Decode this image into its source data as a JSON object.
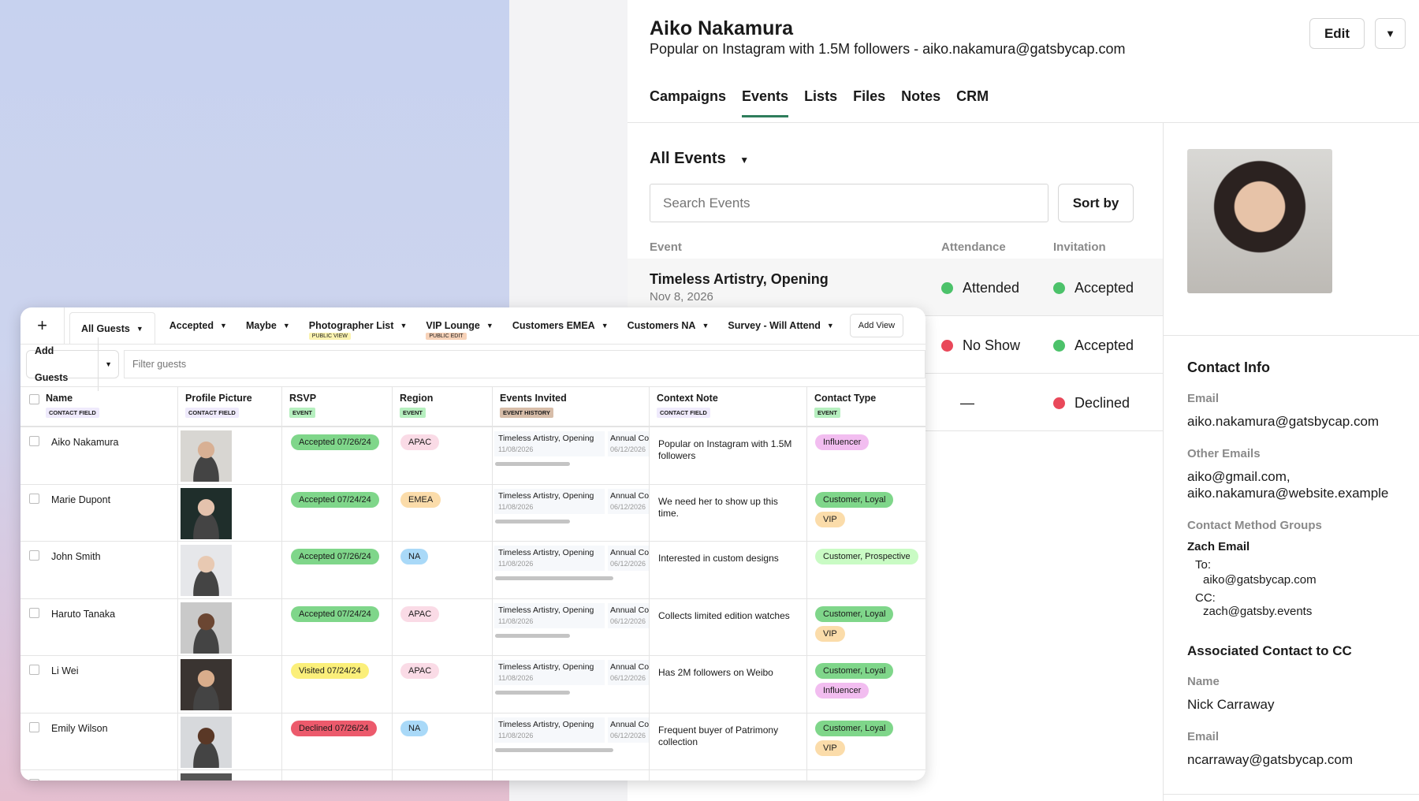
{
  "contact": {
    "name": "Aiko Nakamura",
    "subtitle": "Popular on Instagram with 1.5M followers - aiko.nakamura@gatsbycap.com",
    "edit_label": "Edit"
  },
  "tabs": [
    {
      "label": "Campaigns"
    },
    {
      "label": "Events",
      "active": true
    },
    {
      "label": "Lists"
    },
    {
      "label": "Files"
    },
    {
      "label": "Notes"
    },
    {
      "label": "CRM"
    }
  ],
  "events": {
    "filter_label": "All Events",
    "search_placeholder": "Search Events",
    "sort_label": "Sort by",
    "columns": [
      "Event",
      "Attendance",
      "Invitation"
    ],
    "rows": [
      {
        "name": "Timeless Artistry, Opening",
        "date": "Nov 8, 2026",
        "attendance": "Attended",
        "attendance_color": "#4cc26a",
        "invitation": "Accepted",
        "invitation_color": "#4cc26a"
      },
      {
        "name": "",
        "date": "",
        "attendance": "No Show",
        "attendance_color": "#e9485a",
        "invitation": "Accepted",
        "invitation_color": "#4cc26a"
      },
      {
        "name": "",
        "date": "",
        "attendance": "—",
        "attendance_color": "",
        "invitation": "Declined",
        "invitation_color": "#e9485a"
      }
    ]
  },
  "info": {
    "title": "Contact Info",
    "email_label": "Email",
    "email": "aiko.nakamura@gatsbycap.com",
    "other_label": "Other Emails",
    "other1": "aiko@gmail.com,",
    "other2": "aiko.nakamura@website.example",
    "cmg_label": "Contact Method Groups",
    "group_name": "Zach Email",
    "to_label": "To:",
    "to": "aiko@gatsbycap.com",
    "cc_label": "CC:",
    "cc": "zach@gatsby.events",
    "assoc_title": "Associated Contact to CC",
    "assoc_name_label": "Name",
    "assoc_name": "Nick Carraway",
    "assoc_email_label": "Email",
    "assoc_email": "ncarraway@gatsbycap.com"
  },
  "guests": {
    "views": [
      {
        "label": "All Guests",
        "active": true
      },
      {
        "label": "Accepted"
      },
      {
        "label": "Maybe"
      },
      {
        "label": "Photographer List",
        "badge": "PUBLIC VIEW",
        "badge_color": "#fbf3b0"
      },
      {
        "label": "VIP Lounge",
        "badge": "PUBLIC EDIT",
        "badge_color": "#f7d2b8"
      },
      {
        "label": "Customers EMEA"
      },
      {
        "label": "Customers NA"
      },
      {
        "label": "Survey - Will Attend"
      }
    ],
    "add_view_label": "Add View",
    "add_guests_label": "Add Guests",
    "filter_placeholder": "Filter guests",
    "columns": [
      {
        "label": "Name",
        "tag": "CONTACT FIELD",
        "tag_color": "#efeafc"
      },
      {
        "label": "Profile Picture",
        "tag": "CONTACT FIELD",
        "tag_color": "#efeafc"
      },
      {
        "label": "RSVP",
        "tag": "EVENT",
        "tag_color": "#b6efbf"
      },
      {
        "label": "Region",
        "tag": "EVENT",
        "tag_color": "#b6efbf"
      },
      {
        "label": "Events Invited",
        "tag": "EVENT HISTORY",
        "tag_color": "#d7bda9"
      },
      {
        "label": "Context Note",
        "tag": "CONTACT FIELD",
        "tag_color": "#efeafc"
      },
      {
        "label": "Contact Type",
        "tag": "EVENT",
        "tag_color": "#b6efbf"
      }
    ],
    "rsvp_colors": {
      "Accepted": "#7fd68a",
      "Visited": "#fbef7a",
      "Declined": "#ec5a6c"
    },
    "region_colors": {
      "APAC": "#fadbe6",
      "EMEA": "#fbdcaa",
      "NA": "#a9d9f8"
    },
    "type_colors": {
      "Influencer": "#f2bdf0",
      "Customer, Loyal": "#7fd68a",
      "VIP": "#fbdcaa",
      "Customer, Prospective": "#c9fbc4"
    },
    "event_1": "Timeless Artistry, Opening",
    "event_1_date": "11/08/2026",
    "event_2": "Annual Co",
    "event_2_date": "06/12/2026",
    "rows": [
      {
        "name": "Aiko Nakamura",
        "rsvp": "Accepted 07/26/24",
        "rsvp_status": "Accepted",
        "region": "APAC",
        "note": "Popular on Instagram with 1.5M followers",
        "types": [
          "Influencer"
        ]
      },
      {
        "name": "Marie Dupont",
        "rsvp": "Accepted 07/24/24",
        "rsvp_status": "Accepted",
        "region": "EMEA",
        "note": "We need her to show up this time.",
        "types": [
          "Customer, Loyal",
          "VIP"
        ]
      },
      {
        "name": "John Smith",
        "rsvp": "Accepted 07/26/24",
        "rsvp_status": "Accepted",
        "region": "NA",
        "note": "Interested in custom designs",
        "types": [
          "Customer, Prospective"
        ]
      },
      {
        "name": "Haruto Tanaka",
        "rsvp": "Accepted 07/24/24",
        "rsvp_status": "Accepted",
        "region": "APAC",
        "note": "Collects limited edition watches",
        "types": [
          "Customer, Loyal",
          "VIP"
        ]
      },
      {
        "name": "Li Wei",
        "rsvp": "Visited 07/24/24",
        "rsvp_status": "Visited",
        "region": "APAC",
        "note": "Has 2M followers on Weibo",
        "types": [
          "Customer, Loyal",
          "Influencer"
        ]
      },
      {
        "name": "Emily Wilson",
        "rsvp": "Declined 07/26/24",
        "rsvp_status": "Declined",
        "region": "NA",
        "note": "Frequent buyer of Patrimony collection",
        "types": [
          "Customer, Loyal",
          "VIP"
        ]
      }
    ]
  }
}
